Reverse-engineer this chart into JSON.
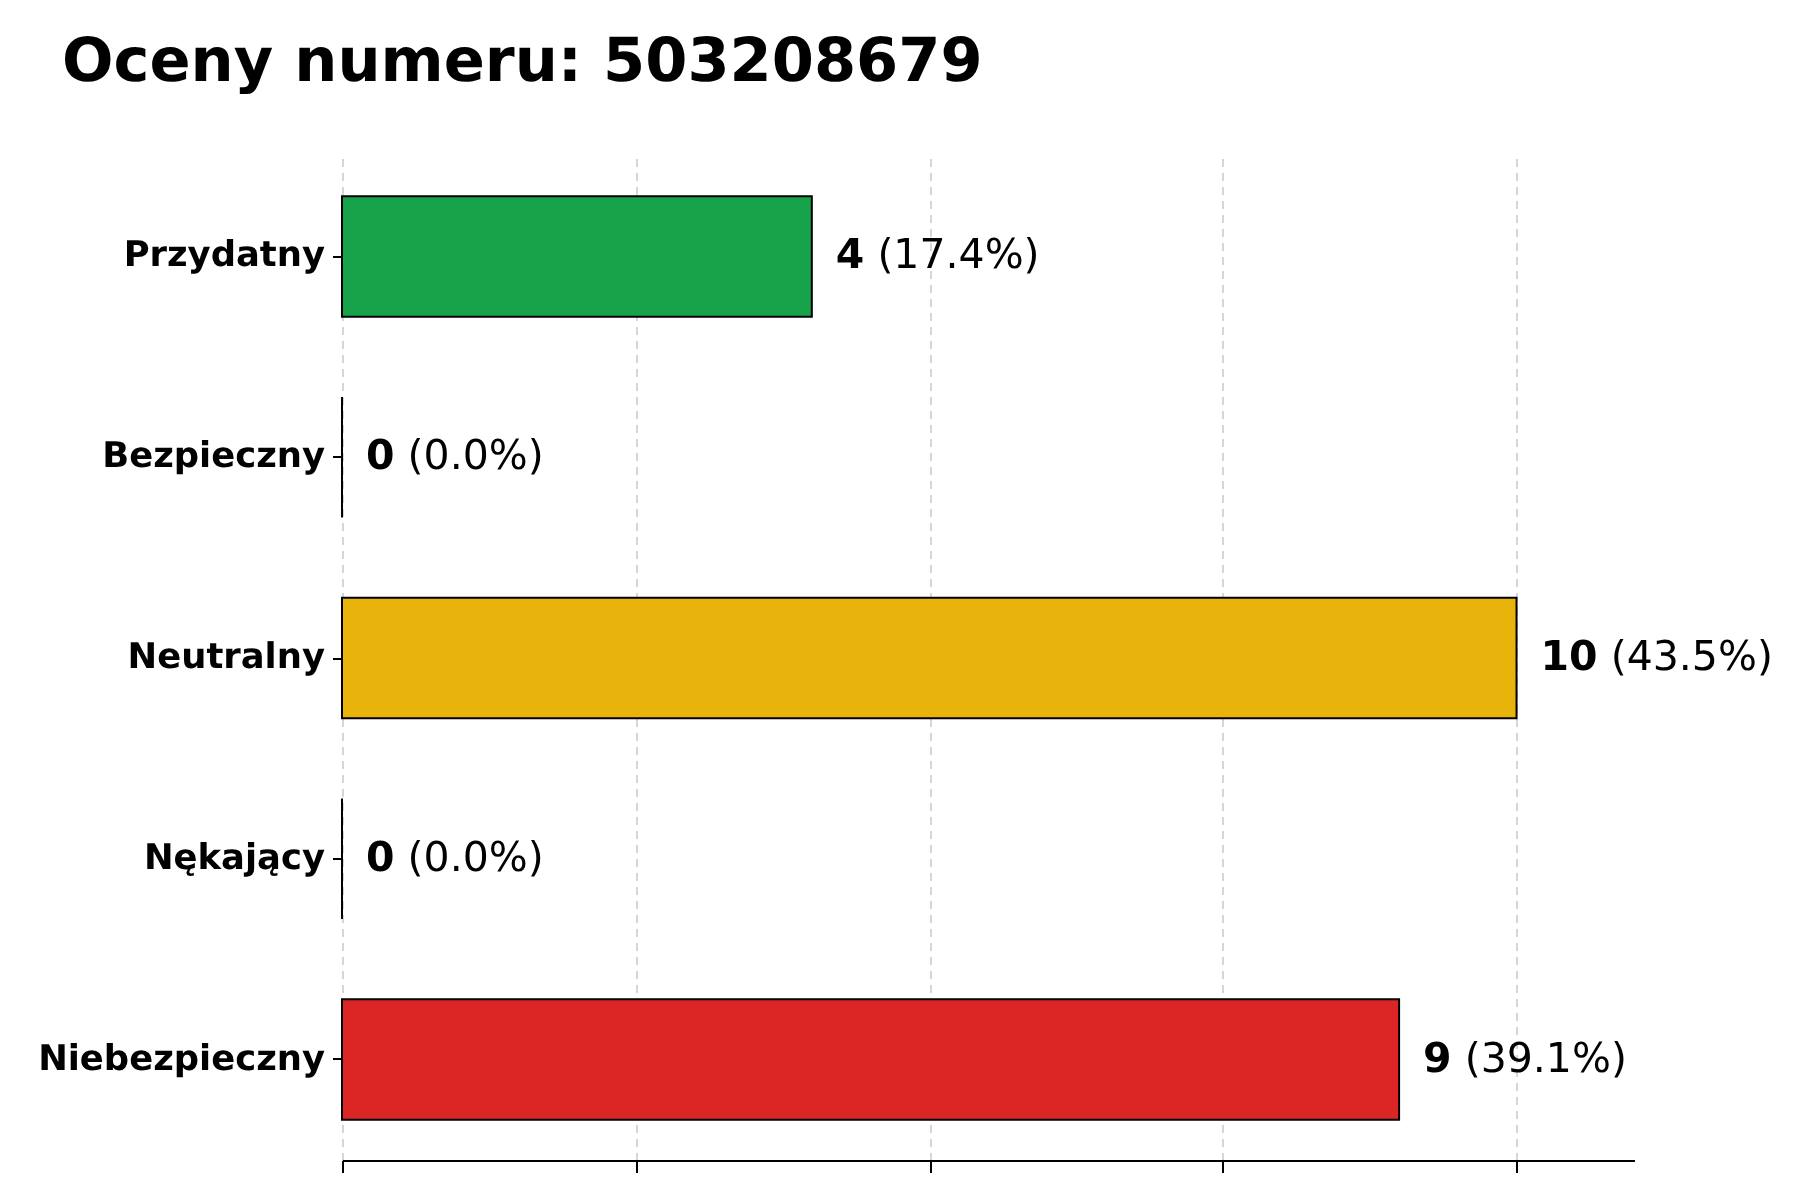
{
  "chart_data": {
    "type": "bar",
    "title": "Oceny numeru: 503208679",
    "orientation": "horizontal",
    "categories": [
      "Przydatny",
      "Bezpieczny",
      "Neutralny",
      "Nękający",
      "Niebezpieczny"
    ],
    "values": [
      4,
      0,
      10,
      0,
      9
    ],
    "colors": [
      "#17a34a",
      "#000000",
      "#e8b30b",
      "#000000",
      "#dc2626"
    ],
    "value_labels": [
      "4 (17.4%)",
      "0 (0.0%)",
      "10 (43.5%)",
      "0 (0.0%)",
      "9 (39.1%)"
    ],
    "xlim": [
      0,
      11
    ],
    "xticks": [
      {
        "value": 0,
        "label": null
      },
      {
        "value": 2.5,
        "label": null
      },
      {
        "value": 5,
        "label": null
      },
      {
        "value": 7.5,
        "label": null
      },
      {
        "value": 10,
        "label": null
      }
    ],
    "grid": "x",
    "tick_labels": "y",
    "legend": false
  }
}
